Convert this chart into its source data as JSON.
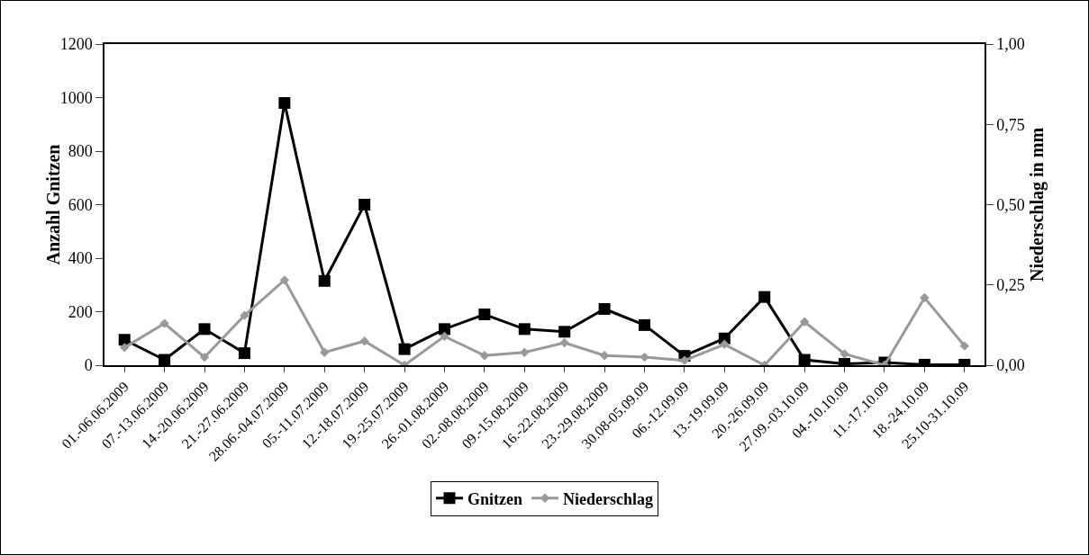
{
  "chart_data": {
    "type": "line",
    "ylabel": "Anzahl Gnitzen",
    "y2label": "Niederschlag in mm",
    "categories": [
      "01.-06.06.2009",
      "07.-13.06.2009",
      "14.-20.06.2009",
      "21.-27.06.2009",
      "28.06.-04.07.2009",
      "05.-11.07.2009",
      "12.-18.07.2009",
      "19.-25.07.2009",
      "26.-01.08.2009",
      "02.-08.08.2009",
      "09.-15.08.2009",
      "16.-22.08.2009",
      "23.-29.08.2009",
      "30.08-05.09.09",
      "06.-12.09.09",
      "13.-19.09.09",
      "20.-26.09.09",
      "27.09.-03.10.09",
      "04.-10.10.09",
      "11.-17.10.09",
      "18.-24.10.09",
      "25.10-31.10.09"
    ],
    "series": [
      {
        "name": "Gnitzen",
        "color": "#000000",
        "marker": "square",
        "values": [
          95,
          20,
          135,
          45,
          980,
          315,
          600,
          60,
          135,
          190,
          135,
          125,
          210,
          150,
          35,
          100,
          255,
          20,
          5,
          10,
          2,
          2
        ]
      },
      {
        "name": "Niederschlag",
        "color": "#999999",
        "marker": "diamond",
        "axis": "y2",
        "values": [
          0.055,
          0.13,
          0.025,
          0.155,
          0.265,
          0.04,
          0.075,
          0.0,
          0.09,
          0.03,
          0.04,
          0.07,
          0.03,
          0.025,
          0.015,
          0.065,
          0.0,
          0.135,
          0.035,
          0.0,
          0.21,
          0.06
        ]
      }
    ],
    "ylim": [
      0,
      1200
    ],
    "yticks": [
      0,
      200,
      400,
      600,
      800,
      1000,
      1200
    ],
    "y2lim": [
      0,
      1
    ],
    "y2ticks": [
      {
        "value": 0,
        "label": "0,00"
      },
      {
        "value": 0.25,
        "label": "0,25"
      },
      {
        "value": 0.5,
        "label": "0,50"
      },
      {
        "value": 0.75,
        "label": "0,75"
      },
      {
        "value": 1,
        "label": "1,00"
      }
    ],
    "grid": false,
    "legend": "bottom",
    "line_style": "solid"
  }
}
